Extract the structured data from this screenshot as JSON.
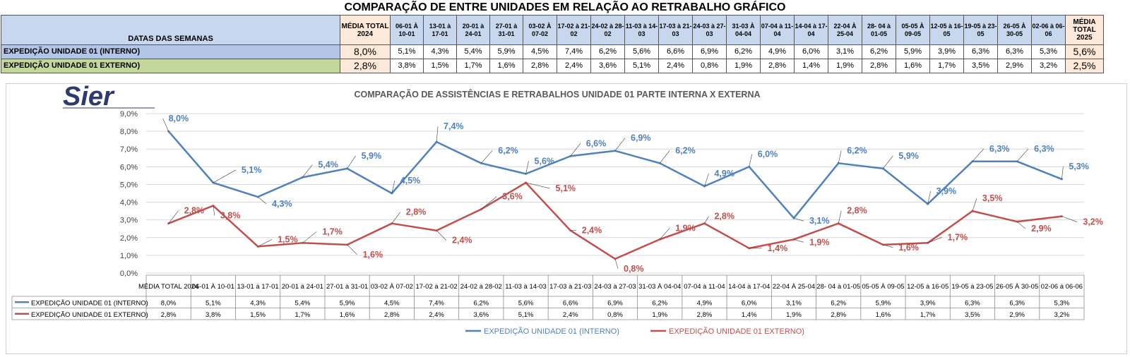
{
  "header": {
    "title": "COMPARAÇÃO DE ENTRE UNIDADES EM RELAÇÃO AO RETRABALHO GRÁFICO"
  },
  "table": {
    "first_header": "DATAS DAS SEMANAS",
    "avg2024_header": "MÉDIA TOTAL 2024",
    "avg2025_header": "MÉDIA TOTAL 2025",
    "week_headers": [
      "06-01 À 10-01",
      "13-01 à 17-01",
      "20-01 à 24-01",
      "27-01 à 31-01",
      "03-02 À 07-02",
      "17-02 à 21-02",
      "24-02 à 28-02",
      "11-03 à 14-03",
      "17-03 à 21-03",
      "24-03 à 27-03",
      "31-03 À 04-04",
      "07-04 à 11-04",
      "14-04 à 17-04",
      "22-04 À 25-04",
      "28- 04 à 01-05",
      "05-05 À 09-05",
      "12-05 à 16-05",
      "19-05 à 23-05",
      "26-05 À 30-05",
      "02-06 à 06-06"
    ],
    "rows": [
      {
        "label": "EXPEDIÇÃO UNIDADE 01 (INTERNO)",
        "color": "#b4c6e7",
        "avg2024": "8,0%",
        "values": [
          "5,1%",
          "4,3%",
          "5,4%",
          "5,9%",
          "4,5%",
          "7,4%",
          "6,2%",
          "5,6%",
          "6,6%",
          "6,9%",
          "6,2%",
          "4,9%",
          "6,0%",
          "3,1%",
          "6,2%",
          "5,9%",
          "3,9%",
          "6,3%",
          "6,3%",
          "5,3%"
        ],
        "avg2025": "5,6%"
      },
      {
        "label": "EXPEDIÇÃO UNIDADE 01 EXTERNO)",
        "color": "#c4d79b",
        "avg2024": "2,8%",
        "values": [
          "3,8%",
          "1,5%",
          "1,7%",
          "1,6%",
          "2,8%",
          "2,4%",
          "3,6%",
          "5,1%",
          "2,4%",
          "0,8%",
          "1,9%",
          "2,8%",
          "1,4%",
          "1,9%",
          "2,8%",
          "1,6%",
          "1,7%",
          "3,5%",
          "2,9%",
          "3,2%"
        ],
        "avg2025": "2,5%"
      }
    ]
  },
  "logo": {
    "text": "Sier",
    "color": "#2e3a6e"
  },
  "chart_data": {
    "type": "line",
    "title": "COMPARAÇÃO DE ASSISTÊNCIAS E RETRABALHOS UNIDADE 01 PARTE INTERNA X EXTERNA",
    "categories": [
      "MÉDIA TOTAL 2024",
      "06-01 À 10-01",
      "13-01 à 17-01",
      "20-01 à 24-01",
      "27-01 à 31-01",
      "03-02 À 07-02",
      "17-02 à 21-02",
      "24-02 à 28-02",
      "11-03 à 14-03",
      "17-03 à 21-03",
      "24-03 à 27-03",
      "31-03 À 04-04",
      "07-04 à 11-04",
      "14-04 à 17-04",
      "22-04 À 25-04",
      "28- 04 à 01-05",
      "05-05 À 09-05",
      "12-05 à 16-05",
      "19-05 à 23-05",
      "26-05 À 30-05",
      "02-06 à 06-06"
    ],
    "yticks": [
      "0,0%",
      "1,0%",
      "2,0%",
      "3,0%",
      "4,0%",
      "5,0%",
      "6,0%",
      "7,0%",
      "8,0%",
      "9,0%"
    ],
    "ylim": [
      0,
      9
    ],
    "grid": true,
    "legend_position": "bottom",
    "series": [
      {
        "name": "EXPEDIÇÃO UNIDADE 01 (INTERNO)",
        "color": "#4f81bd",
        "values": [
          8.0,
          5.1,
          4.3,
          5.4,
          5.9,
          4.5,
          7.4,
          6.2,
          5.6,
          6.6,
          6.9,
          6.2,
          4.9,
          6.0,
          3.1,
          6.2,
          5.9,
          3.9,
          6.3,
          6.3,
          5.3
        ],
        "labels": [
          "8,0%",
          "5,1%",
          "4,3%",
          "5,4%",
          "5,9%",
          "4,5%",
          "7,4%",
          "6,2%",
          "5,6%",
          "6,6%",
          "6,9%",
          "6,2%",
          "4,9%",
          "6,0%",
          "3,1%",
          "6,2%",
          "5,9%",
          "3,9%",
          "6,3%",
          "6,3%",
          "5,3%"
        ]
      },
      {
        "name": "EXPEDIÇÃO UNIDADE 01 EXTERNO)",
        "color": "#c0504d",
        "values": [
          2.8,
          3.8,
          1.5,
          1.7,
          1.6,
          2.8,
          2.4,
          3.6,
          5.1,
          2.4,
          0.8,
          1.9,
          2.8,
          1.4,
          1.9,
          2.8,
          1.6,
          1.7,
          3.5,
          2.9,
          3.2
        ],
        "labels": [
          "2,8%",
          "3,8%",
          "1,5%",
          "1,7%",
          "1,6%",
          "2,8%",
          "2,4%",
          "3,6%",
          "5,1%",
          "2,4%",
          "0,8%",
          "1,9%",
          "2,8%",
          "1,4%",
          "1,9%",
          "2,8%",
          "1,6%",
          "1,7%",
          "3,5%",
          "2,9%",
          "3,2%"
        ]
      }
    ]
  }
}
